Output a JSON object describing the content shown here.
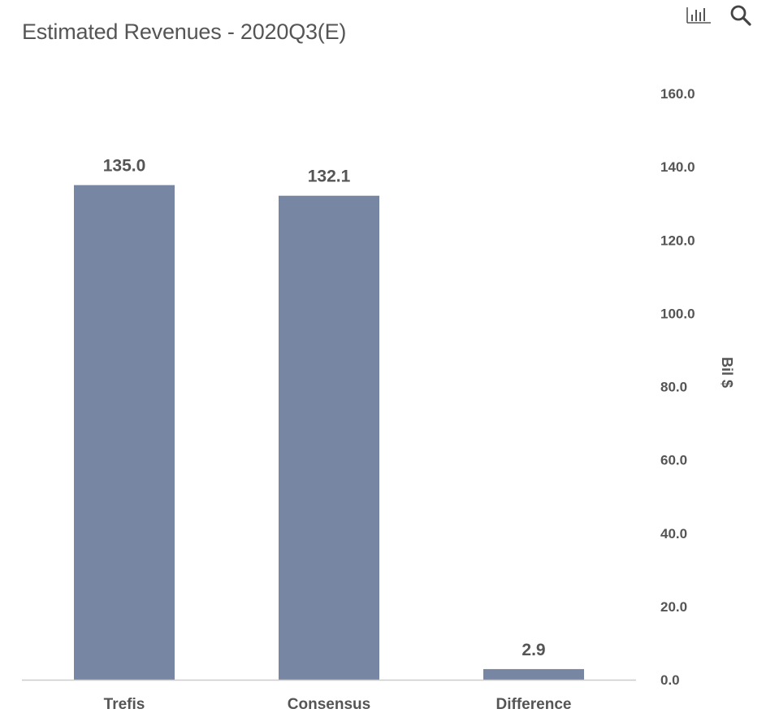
{
  "title": "Estimated Revenues - 2020Q3(E)",
  "toolbar": {
    "chart_type_icon": "bar-chart-icon",
    "search_icon": "search-icon"
  },
  "colors": {
    "bar": "#7786a2",
    "text": "#555555",
    "axis_text": "#555555",
    "baseline": "#cccccc"
  },
  "chart_data": {
    "type": "bar",
    "categories": [
      "Trefis",
      "Consensus",
      "Difference"
    ],
    "values": [
      135.0,
      132.1,
      2.9
    ],
    "data_labels": [
      "135.0",
      "132.1",
      "2.9"
    ],
    "title": "Estimated Revenues - 2020Q3(E)",
    "xlabel": "",
    "ylabel": "Bil $",
    "ylim": [
      0,
      160
    ],
    "yticks": [
      0,
      20,
      40,
      60,
      80,
      100,
      120,
      140,
      160
    ],
    "ytick_labels": [
      "0.0",
      "20.0",
      "40.0",
      "60.0",
      "80.0",
      "100.0",
      "120.0",
      "140.0",
      "160.0"
    ],
    "y_axis_side": "right",
    "grid": false,
    "legend": "none"
  }
}
